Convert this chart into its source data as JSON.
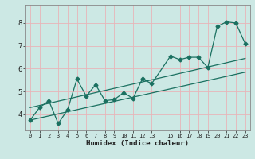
{
  "xlabel": "Humidex (Indice chaleur)",
  "background_color": "#cce8e4",
  "grid_color": "#e8b4b8",
  "line_color": "#1a7060",
  "xlim": [
    -0.5,
    23.5
  ],
  "ylim": [
    3.3,
    8.8
  ],
  "yticks": [
    4,
    5,
    6,
    7,
    8
  ],
  "xtick_positions": [
    0,
    1,
    2,
    3,
    4,
    5,
    6,
    7,
    8,
    9,
    10,
    11,
    12,
    13,
    15,
    16,
    17,
    18,
    19,
    20,
    21,
    22,
    23
  ],
  "xtick_labels": [
    "0",
    "1",
    "2",
    "3",
    "4",
    "5",
    "6",
    "7",
    "8",
    "9",
    "10",
    "11",
    "12",
    "13",
    "15",
    "16",
    "17",
    "18",
    "19",
    "20",
    "21",
    "22",
    "23"
  ],
  "line1_x": [
    0,
    1,
    2,
    3,
    4,
    5,
    6,
    7,
    8,
    9,
    10,
    11,
    12,
    13,
    15,
    16,
    17,
    18,
    19,
    20,
    21,
    22,
    23
  ],
  "line1_y": [
    3.75,
    4.3,
    4.6,
    3.6,
    4.2,
    5.55,
    4.8,
    5.3,
    4.6,
    4.65,
    4.95,
    4.7,
    5.55,
    5.35,
    6.55,
    6.4,
    6.5,
    6.5,
    6.05,
    7.85,
    8.05,
    8.0,
    7.1
  ],
  "line2_x": [
    0,
    23
  ],
  "line2_y": [
    3.75,
    5.85
  ],
  "line3_x": [
    0,
    23
  ],
  "line3_y": [
    4.3,
    6.45
  ],
  "marker_style": "D",
  "marker_size": 2.5,
  "line_width": 0.9,
  "xlabel_fontsize": 6.5,
  "ytick_fontsize": 6.5,
  "xtick_fontsize": 5.0
}
